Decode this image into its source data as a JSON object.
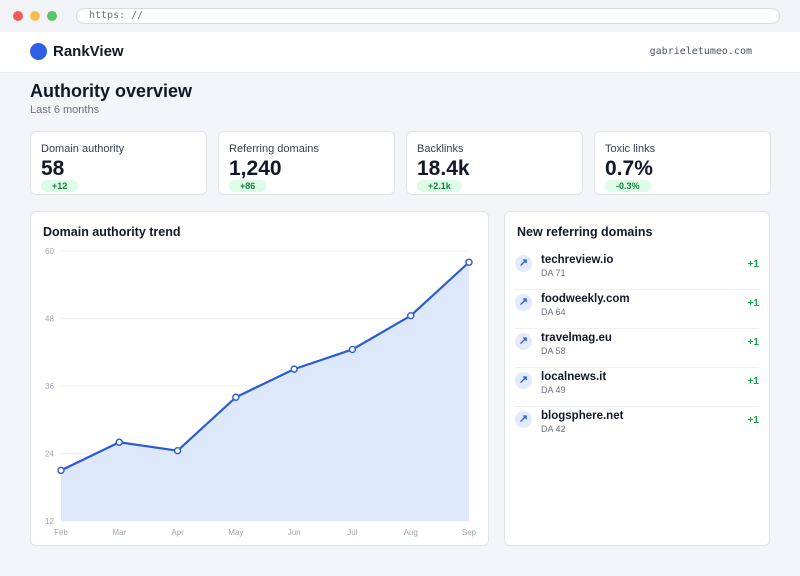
{
  "browser": {
    "url": "https: //"
  },
  "header": {
    "brand": "RankView",
    "user": "gabrieletumeo.com"
  },
  "page": {
    "title": "Authority overview",
    "subtitle": "Last 6 months"
  },
  "stats": [
    {
      "label": "Domain authority",
      "value": "58",
      "delta": "+12"
    },
    {
      "label": "Referring domains",
      "value": "1,240",
      "delta": "+86"
    },
    {
      "label": "Backlinks",
      "value": "18.4k",
      "delta": "+2.1k"
    },
    {
      "label": "Toxic links",
      "value": "0.7%",
      "delta": "-0.3%"
    }
  ],
  "trend": {
    "title": "Domain authority trend",
    "chart_data": {
      "type": "area",
      "categories": [
        "Feb",
        "Mar",
        "Apr",
        "May",
        "Jun",
        "Jul",
        "Aug",
        "Sep"
      ],
      "values": [
        21,
        26,
        24.5,
        34,
        39,
        42.5,
        48.5,
        58
      ],
      "yticks": [
        "60",
        "48",
        "36",
        "24",
        "12"
      ],
      "ylim": [
        12,
        60
      ],
      "grid": true,
      "line_color": "#2a5bd7",
      "fill_color": "#dde8fb"
    }
  },
  "referring": {
    "title": "New referring domains",
    "items": [
      {
        "name": "techreview.io",
        "da": "DA 71",
        "delta": "+1",
        "icon": "arrow-up-right-icon"
      },
      {
        "name": "foodweekly.com",
        "da": "DA 64",
        "delta": "+1",
        "icon": "arrow-up-right-icon"
      },
      {
        "name": "travelmag.eu",
        "da": "DA 58",
        "delta": "+1",
        "icon": "arrow-up-right-icon"
      },
      {
        "name": "localnews.it",
        "da": "DA 49",
        "delta": "+1",
        "icon": "arrow-up-right-icon"
      },
      {
        "name": "blogsphere.net",
        "da": "DA 42",
        "delta": "+1",
        "icon": "arrow-up-right-icon"
      }
    ]
  },
  "colors": {
    "accent": "#2f5fe3",
    "positive": "#16a34a",
    "badge_bg": "#dcfce7"
  }
}
